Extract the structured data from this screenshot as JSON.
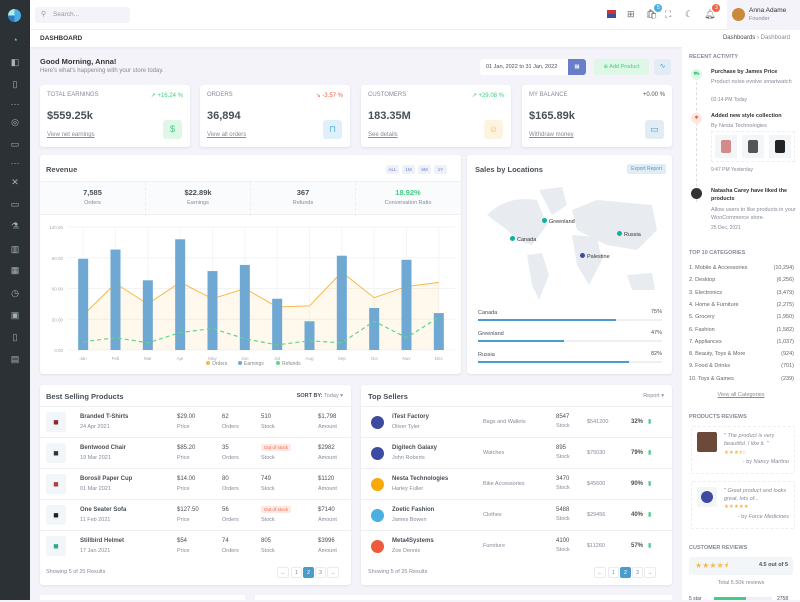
{
  "topbar": {
    "search_placeholder": "Search...",
    "cart_badge": "5",
    "bell_badge": "3",
    "user_name": "Anna Adame",
    "user_role": "Founder"
  },
  "breadcrumb": {
    "page": "DASHBOARD",
    "parent": "Dashboards",
    "current": "Dashboard"
  },
  "greeting": {
    "title": "Good Morning, Anna!",
    "subtitle": "Here's what's happening with your store today.",
    "date_range": "01 Jan, 2022 to 31 Jan, 2022",
    "add_product": "Add Product"
  },
  "stats": [
    {
      "label": "Total Earnings",
      "change": "+16.24 %",
      "dir": "up",
      "value": "$559.25k",
      "link": "View net earnings",
      "icon": "dollar-icon",
      "bg": "#dff7e7",
      "fg": "#45cb85"
    },
    {
      "label": "Orders",
      "change": "-3.57 %",
      "dir": "down",
      "value": "36,894",
      "link": "View all orders",
      "icon": "shopping-bag-icon",
      "bg": "#dff0fa",
      "fg": "#4ab0e2"
    },
    {
      "label": "Customers",
      "change": "+29.08 %",
      "dir": "up",
      "value": "183.35M",
      "link": "See details",
      "icon": "user-circle-icon",
      "bg": "#fef3e0",
      "fg": "#f7b84b"
    },
    {
      "label": "My Balance",
      "change": "+0.00 %",
      "dir": "flat",
      "value": "$165.89k",
      "link": "Withdraw money",
      "icon": "wallet-icon",
      "bg": "#e1ecf5",
      "fg": "#4b9ccb"
    }
  ],
  "revenue": {
    "title": "Revenue",
    "filters": [
      "ALL",
      "1M",
      "6M",
      "1Y"
    ],
    "summary": [
      {
        "value": "7,585",
        "label": "Orders"
      },
      {
        "value": "$22.89k",
        "label": "Earnings"
      },
      {
        "value": "367",
        "label": "Refunds"
      },
      {
        "value": "18.92%",
        "label": "Conversation Ratio"
      }
    ]
  },
  "chart_data": {
    "type": "bar",
    "categories": [
      "Jan",
      "Feb",
      "Mar",
      "Apr",
      "May",
      "Jun",
      "Jul",
      "Aug",
      "Sep",
      "Oct",
      "Nov",
      "Dec"
    ],
    "ylim": [
      0,
      120
    ],
    "yticks": [
      "0.00",
      "30.00",
      "60.00",
      "90.00",
      "120.00"
    ],
    "legend_position": "bottom",
    "series": [
      {
        "name": "Orders",
        "kind": "area",
        "color": "#f7b84b",
        "values": [
          34,
          65,
          45,
          66,
          50,
          60,
          42,
          43,
          76,
          51,
          62,
          66
        ]
      },
      {
        "name": "Earnings",
        "kind": "bar",
        "color": "#6ea8d3",
        "values": [
          89,
          98,
          68,
          108,
          77,
          83,
          50,
          28,
          92,
          41,
          88,
          36
        ]
      },
      {
        "name": "Refunds",
        "kind": "dashed-line",
        "color": "#5fd68a",
        "values": [
          8,
          12,
          7,
          17,
          21,
          11,
          5,
          9,
          7,
          28,
          12,
          32
        ]
      }
    ]
  },
  "locations": {
    "title": "Sales by Locations",
    "export": "Export Report",
    "markers": [
      "Greenland",
      "Canada",
      "Russia",
      "Palestine"
    ],
    "bars": [
      {
        "name": "Canada",
        "pct": "75%",
        "value": 75
      },
      {
        "name": "Greenland",
        "pct": "47%",
        "value": 47
      },
      {
        "name": "Russia",
        "pct": "82%",
        "value": 82
      }
    ]
  },
  "best_selling": {
    "title": "Best Selling Products",
    "sort_label": "SORT BY:",
    "sort_value": "Today",
    "footer": "Showing 5 of 25 Results",
    "pages": [
      "←",
      "1",
      "2",
      "3",
      "→"
    ],
    "rows": [
      {
        "name": "Branded T-Shirts",
        "date": "24 Apr 2021",
        "price": "$29.00",
        "orders": "62",
        "stock": "510",
        "amount": "$1,798",
        "icon": "tshirt-icon"
      },
      {
        "name": "Bentwood Chair",
        "date": "19 Mar 2021",
        "price": "$85.20",
        "orders": "35",
        "stock": "Out of stock",
        "amount": "$2982",
        "icon": "chair-icon"
      },
      {
        "name": "Borosil Paper Cup",
        "date": "01 Mar 2021",
        "price": "$14.00",
        "orders": "80",
        "stock": "749",
        "amount": "$1120",
        "icon": "cup-icon"
      },
      {
        "name": "One Seater Sofa",
        "date": "11 Feb 2021",
        "price": "$127.50",
        "orders": "56",
        "stock": "Out of stock",
        "amount": "$7140",
        "icon": "sofa-icon"
      },
      {
        "name": "Stillbird Helmet",
        "date": "17 Jan 2021",
        "price": "$54",
        "orders": "74",
        "stock": "805",
        "amount": "$3996",
        "icon": "helmet-icon"
      }
    ],
    "col_labels": {
      "price": "Price",
      "orders": "Orders",
      "stock": "Stock",
      "amount": "Amount"
    }
  },
  "top_sellers": {
    "title": "Top Sellers",
    "report": "Report",
    "footer": "Showing 5 of 25 Results",
    "pages": [
      "←",
      "1",
      "2",
      "3",
      "→"
    ],
    "stock_label": "Stock",
    "rows": [
      {
        "name": "iTest Factory",
        "person": "Oliver Tyler",
        "category": "Bags and Wallets",
        "stock": "8547",
        "amount": "$541200",
        "pct": "32%",
        "color": "#3c4ba0"
      },
      {
        "name": "Digitech Galaxy",
        "person": "John Roberts",
        "category": "Watches",
        "stock": "895",
        "amount": "$75030",
        "pct": "79%",
        "color": "#3c4ba0"
      },
      {
        "name": "Nesta Technologies",
        "person": "Harley Fuller",
        "category": "Bike Accessories",
        "stock": "3470",
        "amount": "$45600",
        "pct": "90%",
        "color": "#f7a90a"
      },
      {
        "name": "Zoetic Fashion",
        "person": "James Bowen",
        "category": "Clothes",
        "stock": "5488",
        "amount": "$29456",
        "pct": "40%",
        "color": "#4ab0e2"
      },
      {
        "name": "Meta4Systems",
        "person": "Zoe Dennis",
        "category": "Furniture",
        "stock": "4100",
        "amount": "$11260",
        "pct": "57%",
        "color": "#ef5a3c"
      }
    ]
  },
  "activity": {
    "title": "Recent Activity",
    "items": [
      {
        "title": "Purchase by James Price",
        "desc": "Product noise evolve smartwatch",
        "time": "02:14 PM Today"
      },
      {
        "title": "Added new style collection",
        "desc": "By Nesta Technologies",
        "time": "9:47 PM Yesterday"
      },
      {
        "title": "Natasha Carey have liked the products",
        "desc": "Allow users to like products in your WooCommerce store.",
        "time": "25 Dec, 2021"
      }
    ]
  },
  "categories": {
    "title": "Top 10 Categories",
    "link": "View all Categories",
    "items": [
      {
        "name": "1. Mobile & Accessories",
        "count": "(10,294)"
      },
      {
        "name": "2. Desktop",
        "count": "(6,256)"
      },
      {
        "name": "3. Electronics",
        "count": "(3,479)"
      },
      {
        "name": "4. Home & Furniture",
        "count": "(2,275)"
      },
      {
        "name": "5. Grocery",
        "count": "(1,950)"
      },
      {
        "name": "6. Fashion",
        "count": "(1,582)"
      },
      {
        "name": "7. Appliances",
        "count": "(1,037)"
      },
      {
        "name": "8. Beauty, Toys & More",
        "count": "(924)"
      },
      {
        "name": "9. Food & Drinks",
        "count": "(701)"
      },
      {
        "name": "10. Toys & Games",
        "count": "(239)"
      }
    ]
  },
  "product_reviews": {
    "title": "Products Reviews",
    "items": [
      {
        "quote": "\" The product is very beautiful. I like it. \"",
        "by": "- by ",
        "author": "Nancy Martino",
        "stars": 3.5
      },
      {
        "quote": "\" Great product and looks great, lots of...",
        "by": "- by ",
        "author": "Force Medicines",
        "stars": 5
      }
    ]
  },
  "customer_reviews": {
    "title": "Customer Reviews",
    "rating": "4.5 out of 5",
    "stars": 4.5,
    "total": "Total 5.50k reviews",
    "first_row_label": "5 star",
    "first_row_count": "2758"
  }
}
